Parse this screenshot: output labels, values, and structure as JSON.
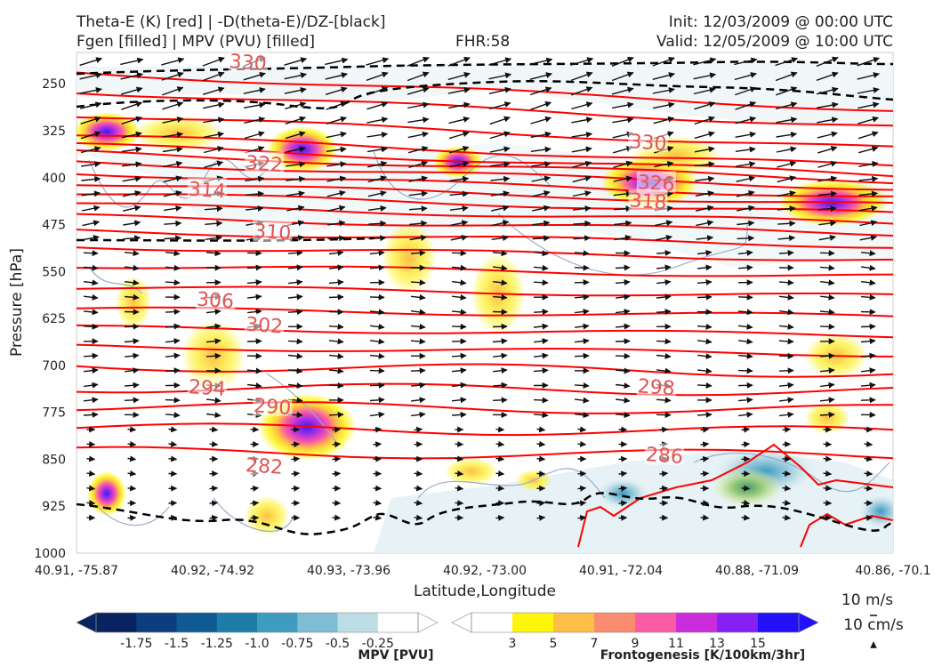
{
  "header": {
    "title_line1": "Theta-E (K) [red] | -D(theta-E)/DZ-[black]",
    "title_line2": "Fgen [filled] | MPV (PVU) [filled]",
    "fhr": "FHR:58",
    "init": "Init: 12/03/2009 @ 00:00 UTC",
    "valid": "Valid: 12/05/2009 @ 10:00 UTC"
  },
  "chart_data": {
    "type": "cross-section",
    "xlabel": "Latitude,Longitude",
    "ylabel": "Pressure [hPa]",
    "x_ticks": [
      "40.91, -75.87",
      "40.92, -74.92",
      "40.93, -73.96",
      "40.92, -73.00",
      "40.91, -72.04",
      "40.88, -71.09",
      "40.86, -70.1"
    ],
    "y_ticks": [
      250,
      325,
      400,
      475,
      550,
      625,
      700,
      775,
      850,
      925,
      1000
    ],
    "ylim": [
      1000,
      200
    ],
    "y_inverted": true,
    "theta_e_labels": [
      {
        "value": "330",
        "x": 0.21,
        "p": 215
      },
      {
        "value": "330",
        "x": 0.7,
        "p": 343
      },
      {
        "value": "322",
        "x": 0.23,
        "p": 377
      },
      {
        "value": "326",
        "x": 0.71,
        "p": 408
      },
      {
        "value": "314",
        "x": 0.16,
        "p": 419
      },
      {
        "value": "318",
        "x": 0.7,
        "p": 437
      },
      {
        "value": "310",
        "x": 0.24,
        "p": 486
      },
      {
        "value": "306",
        "x": 0.17,
        "p": 595
      },
      {
        "value": "302",
        "x": 0.23,
        "p": 635
      },
      {
        "value": "298",
        "x": 0.71,
        "p": 734
      },
      {
        "value": "294",
        "x": 0.16,
        "p": 735
      },
      {
        "value": "290",
        "x": 0.24,
        "p": 765
      },
      {
        "value": "286",
        "x": 0.72,
        "p": 843
      },
      {
        "value": "282",
        "x": 0.23,
        "p": 860
      }
    ],
    "theta_e_color": "#ff0000",
    "theta_e_label_color": "#e05555",
    "stability_color": "#000000",
    "mpv_colorbar": {
      "label": "MPV [PVU]",
      "ticks": [
        "-1.75",
        "-1.5",
        "-1.25",
        "-1.0",
        "-0.75",
        "-0.5",
        "-0.25"
      ],
      "colors": [
        "#08235f",
        "#0d3d7c",
        "#0f5a93",
        "#1c7ea8",
        "#3d9cbf",
        "#7fbdd4",
        "#bddde6",
        "#ffffff"
      ]
    },
    "fgen_colorbar": {
      "label": "Frontogenesis [K/100km/3hr]",
      "ticks": [
        "3",
        "5",
        "7",
        "9",
        "11",
        "13",
        "15"
      ],
      "colors": [
        "#ffffff",
        "#fdf60a",
        "#fdbf46",
        "#fc8c6f",
        "#fb5aa5",
        "#cb2cdc",
        "#8620f5",
        "#2211f9"
      ]
    },
    "wind_key": {
      "label1": "10 m/s",
      "label2": "10 cm/s"
    }
  }
}
